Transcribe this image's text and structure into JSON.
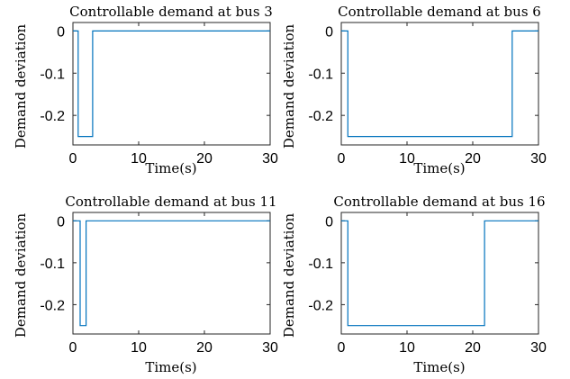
{
  "chart_data": [
    {
      "type": "line",
      "title": "Controllable demand at bus 3",
      "xlabel": "Time(s)",
      "ylabel": "Demand deviation",
      "xlim": [
        0,
        30
      ],
      "ylim": [
        -0.27,
        0.02
      ],
      "xticks": [
        "0",
        "10",
        "20",
        "30"
      ],
      "yticks": [
        "0",
        "-0.1",
        "-0.2"
      ],
      "color": "#0072BD",
      "series": [
        {
          "x": [
            0,
            0.8,
            0.8,
            3.0,
            3.0,
            30
          ],
          "y": [
            0,
            0,
            -0.25,
            -0.25,
            0,
            0
          ]
        }
      ]
    },
    {
      "type": "line",
      "title": "Controllable demand at bus 6",
      "xlabel": "Time(s)",
      "ylabel": "Demand deviation",
      "xlim": [
        0,
        30
      ],
      "ylim": [
        -0.27,
        0.02
      ],
      "xticks": [
        "0",
        "10",
        "20",
        "30"
      ],
      "yticks": [
        "0",
        "-0.1",
        "-0.2"
      ],
      "color": "#0072BD",
      "series": [
        {
          "x": [
            0,
            1.0,
            1.0,
            26.0,
            26.0,
            30
          ],
          "y": [
            0,
            0,
            -0.25,
            -0.25,
            0,
            0
          ]
        }
      ]
    },
    {
      "type": "line",
      "title": "Controllable demand at bus 11",
      "xlabel": "Time(s)",
      "ylabel": "Demand deviation",
      "xlim": [
        0,
        30
      ],
      "ylim": [
        -0.27,
        0.02
      ],
      "xticks": [
        "0",
        "10",
        "20",
        "30"
      ],
      "yticks": [
        "0",
        "-0.1",
        "-0.2"
      ],
      "color": "#0072BD",
      "series": [
        {
          "x": [
            0,
            1.1,
            1.1,
            2.0,
            2.0,
            30
          ],
          "y": [
            0,
            0,
            -0.25,
            -0.25,
            0,
            0
          ]
        }
      ]
    },
    {
      "type": "line",
      "title": "Controllable demand at bus 16",
      "xlabel": "Time(s)",
      "ylabel": "Demand deviation",
      "xlim": [
        0,
        30
      ],
      "ylim": [
        -0.27,
        0.02
      ],
      "xticks": [
        "0",
        "10",
        "20",
        "30"
      ],
      "yticks": [
        "0",
        "-0.1",
        "-0.2"
      ],
      "color": "#0072BD",
      "series": [
        {
          "x": [
            0,
            1.0,
            1.0,
            21.8,
            21.8,
            30
          ],
          "y": [
            0,
            0,
            -0.25,
            -0.25,
            0,
            0
          ]
        }
      ]
    }
  ]
}
